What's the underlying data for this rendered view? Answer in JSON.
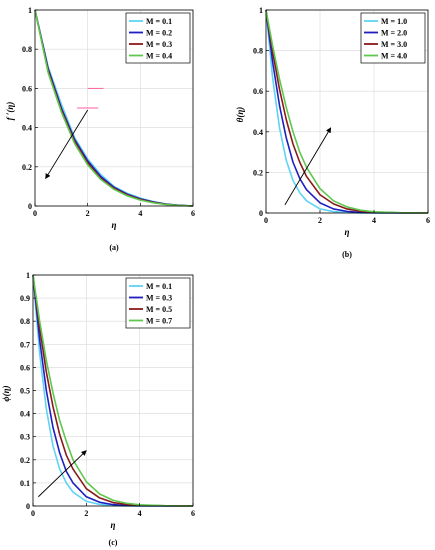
{
  "chart_data": [
    {
      "type": "line",
      "panel": "a",
      "caption": "(a)",
      "xlabel": "η",
      "ylabel": "f ′(η)",
      "xlim": [
        0,
        6
      ],
      "ylim": [
        0,
        1
      ],
      "xticks": [
        "0",
        "2",
        "4",
        "6"
      ],
      "yticks": [
        "0",
        "0.2",
        "0.4",
        "0.6",
        "0.8",
        "1"
      ],
      "grid": true,
      "legend_position": "top-right",
      "x": [
        0,
        0.5,
        1,
        1.5,
        2,
        2.5,
        3,
        3.5,
        4,
        4.5,
        5,
        5.5,
        6
      ],
      "series": [
        {
          "name": "M = 0.1",
          "color": "#5fd3f3",
          "values": [
            1,
            0.71,
            0.52,
            0.35,
            0.24,
            0.16,
            0.1,
            0.065,
            0.04,
            0.022,
            0.01,
            0.004,
            0
          ]
        },
        {
          "name": "M = 0.2",
          "color": "#1f1fbf",
          "values": [
            1,
            0.7,
            0.5,
            0.34,
            0.23,
            0.15,
            0.095,
            0.06,
            0.036,
            0.02,
            0.009,
            0.003,
            0
          ]
        },
        {
          "name": "M = 0.3",
          "color": "#8b1a1a",
          "values": [
            1,
            0.69,
            0.49,
            0.33,
            0.22,
            0.14,
            0.09,
            0.056,
            0.033,
            0.018,
            0.008,
            0.003,
            0
          ]
        },
        {
          "name": "M = 0.4",
          "color": "#5ec84e",
          "values": [
            1,
            0.68,
            0.48,
            0.32,
            0.21,
            0.135,
            0.085,
            0.052,
            0.03,
            0.016,
            0.007,
            0.002,
            0
          ]
        }
      ],
      "arrow": {
        "from": [
          2.0,
          0.49
        ],
        "to": [
          0.4,
          0.14
        ]
      },
      "extra_marks": [
        {
          "color": "#ff5fa0",
          "x": [
            1.6,
            2.4
          ],
          "y": 0.5
        },
        {
          "color": "#ff5fa0",
          "x": [
            2.0,
            2.6
          ],
          "y": 0.6
        }
      ]
    },
    {
      "type": "line",
      "panel": "b",
      "caption": "(b)",
      "xlabel": "η",
      "ylabel": "θ(η)",
      "xlim": [
        0,
        6
      ],
      "ylim": [
        0,
        1
      ],
      "xticks": [
        "0",
        "2",
        "4",
        "6"
      ],
      "yticks": [
        "0",
        "0.2",
        "0.4",
        "0.6",
        "0.8",
        "1"
      ],
      "grid": true,
      "legend_position": "top-right",
      "x": [
        0,
        0.25,
        0.5,
        0.75,
        1,
        1.25,
        1.5,
        2,
        2.5,
        3,
        3.5,
        4,
        5,
        6
      ],
      "series": [
        {
          "name": "M = 1.0",
          "color": "#5fd3f3",
          "values": [
            1,
            0.66,
            0.42,
            0.26,
            0.16,
            0.1,
            0.06,
            0.02,
            0.007,
            0.002,
            0,
            0,
            0,
            0
          ]
        },
        {
          "name": "M = 2.0",
          "color": "#1f1fbf",
          "values": [
            1,
            0.74,
            0.53,
            0.37,
            0.25,
            0.17,
            0.115,
            0.05,
            0.02,
            0.008,
            0.003,
            0.001,
            0,
            0
          ]
        },
        {
          "name": "M = 3.0",
          "color": "#8b1a1a",
          "values": [
            1,
            0.79,
            0.61,
            0.46,
            0.34,
            0.25,
            0.18,
            0.09,
            0.045,
            0.02,
            0.009,
            0.004,
            0.001,
            0
          ]
        },
        {
          "name": "M = 4.0",
          "color": "#5ec84e",
          "values": [
            1,
            0.82,
            0.66,
            0.52,
            0.4,
            0.3,
            0.225,
            0.12,
            0.06,
            0.03,
            0.014,
            0.006,
            0.001,
            0
          ]
        }
      ],
      "arrow": {
        "from": [
          0.7,
          0.04
        ],
        "to": [
          2.4,
          0.42
        ]
      }
    },
    {
      "type": "line",
      "panel": "c",
      "caption": "(c)",
      "xlabel": "η",
      "ylabel": "ϕ(η)",
      "xlim": [
        0,
        6
      ],
      "ylim": [
        0,
        1
      ],
      "xticks": [
        "0",
        "2",
        "4",
        "6"
      ],
      "yticks": [
        "0",
        "0.1",
        "0.2",
        "0.3",
        "0.4",
        "0.5",
        "0.6",
        "0.7",
        "0.8",
        "0.9",
        "1"
      ],
      "grid": true,
      "legend_position": "top-right",
      "x": [
        0,
        0.25,
        0.5,
        0.75,
        1,
        1.25,
        1.5,
        2,
        2.5,
        3,
        3.5,
        4,
        5,
        6
      ],
      "series": [
        {
          "name": "M = 0.1",
          "color": "#5fd3f3",
          "values": [
            1,
            0.66,
            0.42,
            0.26,
            0.16,
            0.1,
            0.06,
            0.02,
            0.007,
            0.002,
            0,
            0,
            0,
            0
          ]
        },
        {
          "name": "M = 0.3",
          "color": "#1f1fbf",
          "values": [
            1,
            0.72,
            0.5,
            0.34,
            0.23,
            0.15,
            0.1,
            0.04,
            0.016,
            0.006,
            0.002,
            0.001,
            0,
            0
          ]
        },
        {
          "name": "M = 0.5",
          "color": "#8b1a1a",
          "values": [
            1,
            0.77,
            0.58,
            0.43,
            0.31,
            0.22,
            0.16,
            0.075,
            0.035,
            0.015,
            0.007,
            0.003,
            0.001,
            0
          ]
        },
        {
          "name": "M = 0.7",
          "color": "#5ec84e",
          "values": [
            1,
            0.8,
            0.63,
            0.49,
            0.37,
            0.28,
            0.2,
            0.105,
            0.052,
            0.025,
            0.012,
            0.005,
            0.001,
            0
          ]
        }
      ],
      "arrow": {
        "from": [
          0.2,
          0.04
        ],
        "to": [
          2.0,
          0.24
        ]
      }
    }
  ]
}
